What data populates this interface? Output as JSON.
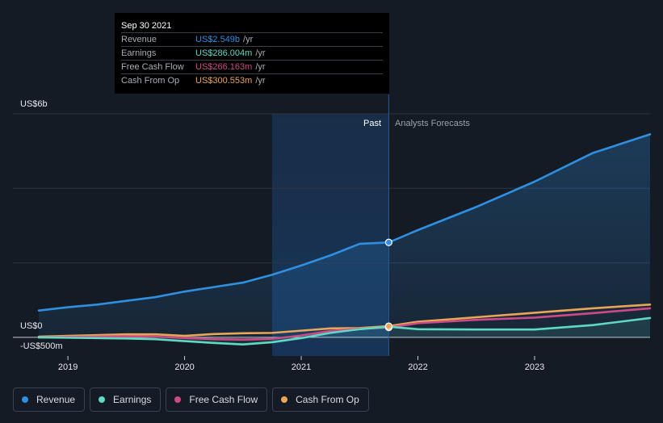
{
  "tooltip": {
    "date": "Sep 30 2021",
    "rows": [
      {
        "label": "Revenue",
        "value": "US$2.549b",
        "unit": "/yr",
        "color": "#2f8fe0"
      },
      {
        "label": "Earnings",
        "value": "US$286.004m",
        "unit": "/yr",
        "color": "#5fd9c5"
      },
      {
        "label": "Free Cash Flow",
        "value": "US$266.163m",
        "unit": "/yr",
        "color": "#cc4b86"
      },
      {
        "label": "Cash From Op",
        "value": "US$300.553m",
        "unit": "/yr",
        "color": "#e9a657"
      }
    ]
  },
  "zones": {
    "past_label": "Past",
    "forecast_label": "Analysts Forecasts"
  },
  "legend": [
    {
      "label": "Revenue",
      "color": "#2f8fe0"
    },
    {
      "label": "Earnings",
      "color": "#5fd9c5"
    },
    {
      "label": "Free Cash Flow",
      "color": "#cc4b86"
    },
    {
      "label": "Cash From Op",
      "color": "#e9a657"
    }
  ],
  "chart_data": {
    "type": "line",
    "y_tick_labels": [
      "US$6b",
      "US$0",
      "-US$500m"
    ],
    "x_tick_labels": [
      "2019",
      "2020",
      "2021",
      "2022",
      "2023"
    ],
    "ylim": [
      -500,
      6000
    ],
    "xlim": [
      2018.75,
      2023.99
    ],
    "past_end": 2021.75,
    "highlight_start": 2020.75,
    "series": [
      {
        "name": "Revenue",
        "color": "#2f8fe0",
        "area": true,
        "x": [
          2018.75,
          2019.0,
          2019.25,
          2019.5,
          2019.75,
          2020.0,
          2020.25,
          2020.5,
          2020.75,
          2021.0,
          2021.25,
          2021.5,
          2021.75,
          2022.0,
          2022.5,
          2023.0,
          2023.5,
          2023.99
        ],
        "y": [
          720,
          810,
          880,
          980,
          1080,
          1230,
          1350,
          1470,
          1680,
          1930,
          2200,
          2510,
          2549,
          2880,
          3500,
          4180,
          4950,
          5450
        ]
      },
      {
        "name": "Earnings",
        "color": "#5fd9c5",
        "area": true,
        "x": [
          2018.75,
          2019.0,
          2019.25,
          2019.5,
          2019.75,
          2020.0,
          2020.25,
          2020.5,
          2020.75,
          2021.0,
          2021.25,
          2021.5,
          2021.75,
          2022.0,
          2022.5,
          2023.0,
          2023.5,
          2023.99
        ],
        "y": [
          0,
          -10,
          -20,
          -30,
          -50,
          -100,
          -150,
          -190,
          -130,
          -20,
          120,
          220,
          286,
          220,
          210,
          210,
          330,
          520
        ]
      },
      {
        "name": "Free Cash Flow",
        "color": "#cc4b86",
        "area": false,
        "x": [
          2018.75,
          2019.0,
          2019.25,
          2019.5,
          2019.75,
          2020.0,
          2020.25,
          2020.5,
          2020.75,
          2021.0,
          2021.25,
          2021.5,
          2021.75,
          2022.0,
          2022.5,
          2023.0,
          2023.5,
          2023.99
        ],
        "y": [
          0,
          10,
          20,
          30,
          20,
          -20,
          -50,
          -60,
          -40,
          50,
          170,
          230,
          266,
          380,
          470,
          530,
          650,
          780
        ]
      },
      {
        "name": "Cash From Op",
        "color": "#e9a657",
        "area": false,
        "x": [
          2018.75,
          2019.0,
          2019.25,
          2019.5,
          2019.75,
          2020.0,
          2020.25,
          2020.5,
          2020.75,
          2021.0,
          2021.25,
          2021.5,
          2021.75,
          2022.0,
          2022.5,
          2023.0,
          2023.5,
          2023.99
        ],
        "y": [
          20,
          40,
          60,
          80,
          80,
          40,
          90,
          110,
          120,
          180,
          240,
          250,
          300.553,
          420,
          540,
          660,
          780,
          880
        ]
      }
    ]
  }
}
